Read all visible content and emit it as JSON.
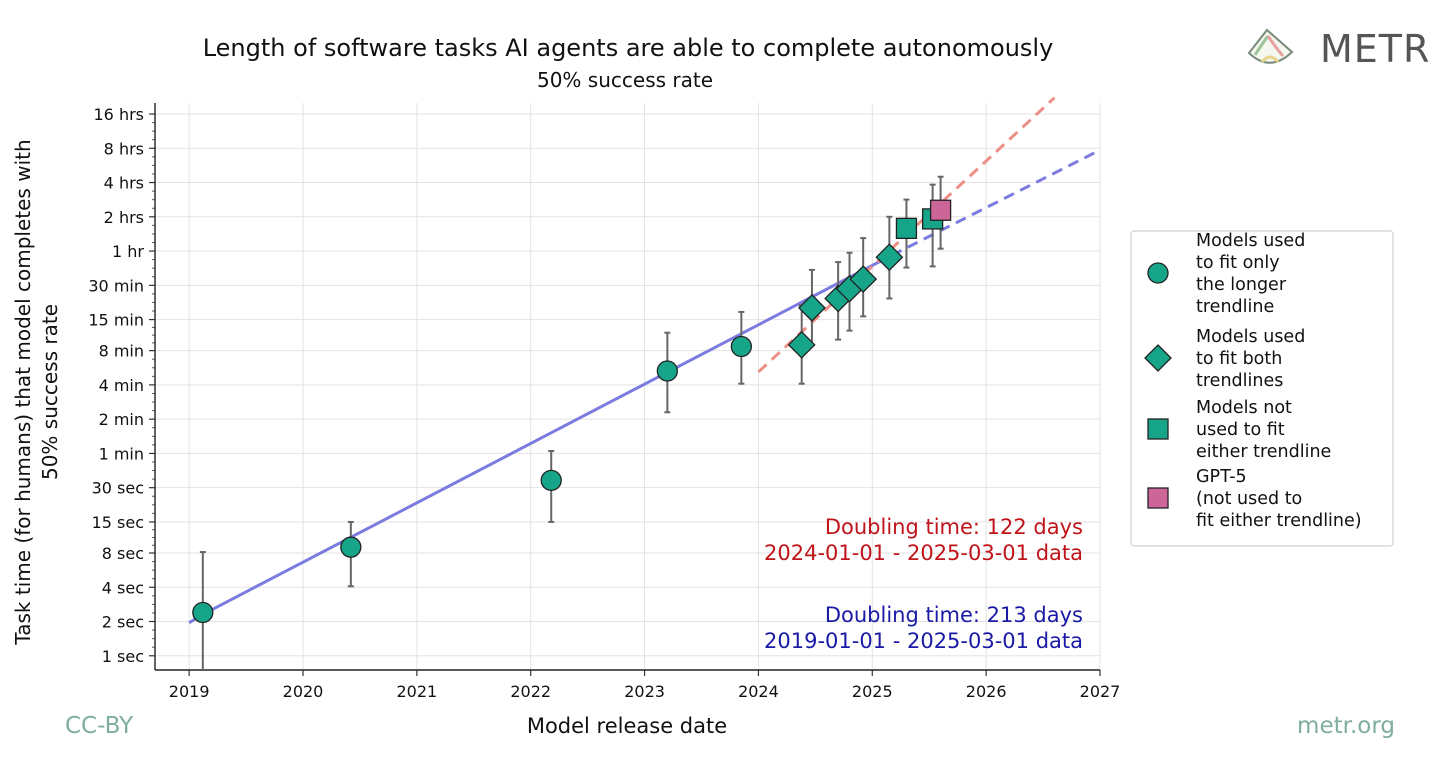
{
  "chart_data": {
    "type": "scatter",
    "title": "Length of software tasks AI agents are able to complete autonomously",
    "subtitle": "50% success rate",
    "xlabel": "Model release date",
    "ylabel_line1": "Task time (for humans) that model completes with",
    "ylabel_line2": "50% success rate",
    "xlim": [
      2018.7,
      2027.0
    ],
    "ylim_minutes": [
      0.0125,
      1200
    ],
    "y_scale": "log2",
    "x_ticks": [
      {
        "value": 2019,
        "label": "2019"
      },
      {
        "value": 2020,
        "label": "2020"
      },
      {
        "value": 2021,
        "label": "2021"
      },
      {
        "value": 2022,
        "label": "2022"
      },
      {
        "value": 2023,
        "label": "2023"
      },
      {
        "value": 2024,
        "label": "2024"
      },
      {
        "value": 2025,
        "label": "2025"
      },
      {
        "value": 2026,
        "label": "2026"
      },
      {
        "value": 2027,
        "label": "2027"
      }
    ],
    "y_ticks": [
      {
        "minutes": 0.016667,
        "label": "1 sec"
      },
      {
        "minutes": 0.033333,
        "label": "2 sec"
      },
      {
        "minutes": 0.066667,
        "label": "4 sec"
      },
      {
        "minutes": 0.133333,
        "label": "8 sec"
      },
      {
        "minutes": 0.25,
        "label": "15 sec"
      },
      {
        "minutes": 0.5,
        "label": "30 sec"
      },
      {
        "minutes": 1,
        "label": "1 min"
      },
      {
        "minutes": 2,
        "label": "2 min"
      },
      {
        "minutes": 4,
        "label": "4 min"
      },
      {
        "minutes": 8,
        "label": "8 min"
      },
      {
        "minutes": 15,
        "label": "15 min"
      },
      {
        "minutes": 30,
        "label": "30 min"
      },
      {
        "minutes": 60,
        "label": "1 hr"
      },
      {
        "minutes": 120,
        "label": "2 hrs"
      },
      {
        "minutes": 240,
        "label": "4 hrs"
      },
      {
        "minutes": 480,
        "label": "8 hrs"
      },
      {
        "minutes": 960,
        "label": "16 hrs"
      }
    ],
    "points": [
      {
        "x": 2019.12,
        "y": 0.04,
        "lo": 0.0125,
        "hi": 0.136,
        "marker": "circle"
      },
      {
        "x": 2020.42,
        "y": 0.15,
        "lo": 0.068,
        "hi": 0.25,
        "marker": "circle"
      },
      {
        "x": 2022.18,
        "y": 0.58,
        "lo": 0.25,
        "hi": 1.05,
        "marker": "circle"
      },
      {
        "x": 2023.2,
        "y": 5.3,
        "lo": 2.3,
        "hi": 11.5,
        "marker": "circle"
      },
      {
        "x": 2023.85,
        "y": 8.7,
        "lo": 4.1,
        "hi": 17.5,
        "marker": "circle"
      },
      {
        "x": 2024.38,
        "y": 9.0,
        "lo": 4.1,
        "hi": 20,
        "marker": "diamond"
      },
      {
        "x": 2024.47,
        "y": 19,
        "lo": 9,
        "hi": 41,
        "marker": "diamond"
      },
      {
        "x": 2024.7,
        "y": 23,
        "lo": 10,
        "hi": 48,
        "marker": "diamond"
      },
      {
        "x": 2024.8,
        "y": 28,
        "lo": 12,
        "hi": 58,
        "marker": "diamond"
      },
      {
        "x": 2024.92,
        "y": 34,
        "lo": 16,
        "hi": 78,
        "marker": "diamond"
      },
      {
        "x": 2025.15,
        "y": 53,
        "lo": 23,
        "hi": 120,
        "marker": "diamond"
      },
      {
        "x": 2025.3,
        "y": 95,
        "lo": 43,
        "hi": 170,
        "marker": "square"
      },
      {
        "x": 2025.53,
        "y": 115,
        "lo": 44,
        "hi": 230,
        "marker": "square"
      },
      {
        "x": 2025.6,
        "y": 137,
        "lo": 63,
        "hi": 270,
        "marker": "square_pink"
      }
    ],
    "trendlines": [
      {
        "name": "long",
        "color": "#7b7be0",
        "solid_x": [
          2019.12,
          2025.17
        ],
        "solid_y": [
          0.0385,
          55
        ],
        "dashed": [
          [
            2019.0,
            0.0325,
            2019.12,
            0.0385
          ],
          [
            2025.17,
            55,
            2027.0,
            463
          ]
        ]
      },
      {
        "name": "short",
        "color": "#ee8f86",
        "dashed": [
          [
            2024.0,
            5.2,
            2026.6,
            1335
          ]
        ]
      }
    ],
    "annotations": {
      "red_line1": "Doubling time: 122 days",
      "red_line2": "2024-01-01 - 2025-03-01 data",
      "blue_line1": "Doubling time: 213 days",
      "blue_line2": "2019-01-01 - 2025-03-01 data"
    },
    "legend": {
      "position": "right",
      "items": [
        {
          "marker": "circle",
          "lines": [
            "Models used",
            "to fit only",
            "the longer",
            "trendline"
          ]
        },
        {
          "marker": "diamond",
          "lines": [
            "Models used",
            "to fit both",
            "trendlines"
          ]
        },
        {
          "marker": "square",
          "lines": [
            "Models not",
            "used to fit",
            "either trendline"
          ]
        },
        {
          "marker": "square_pink",
          "lines": [
            "GPT-5",
            "(not used to",
            "fit either trendline)"
          ]
        }
      ]
    },
    "grid": true
  },
  "colors": {
    "green": "#17a589",
    "pink": "#cc6699",
    "blue_text": "#1a1aa6",
    "red_text": "#c0141a",
    "footer": "#7fae9a"
  },
  "brand": {
    "name": "METR",
    "icon": "metr-logo-icon"
  },
  "footer": {
    "left": "CC-BY",
    "right": "metr.org"
  }
}
